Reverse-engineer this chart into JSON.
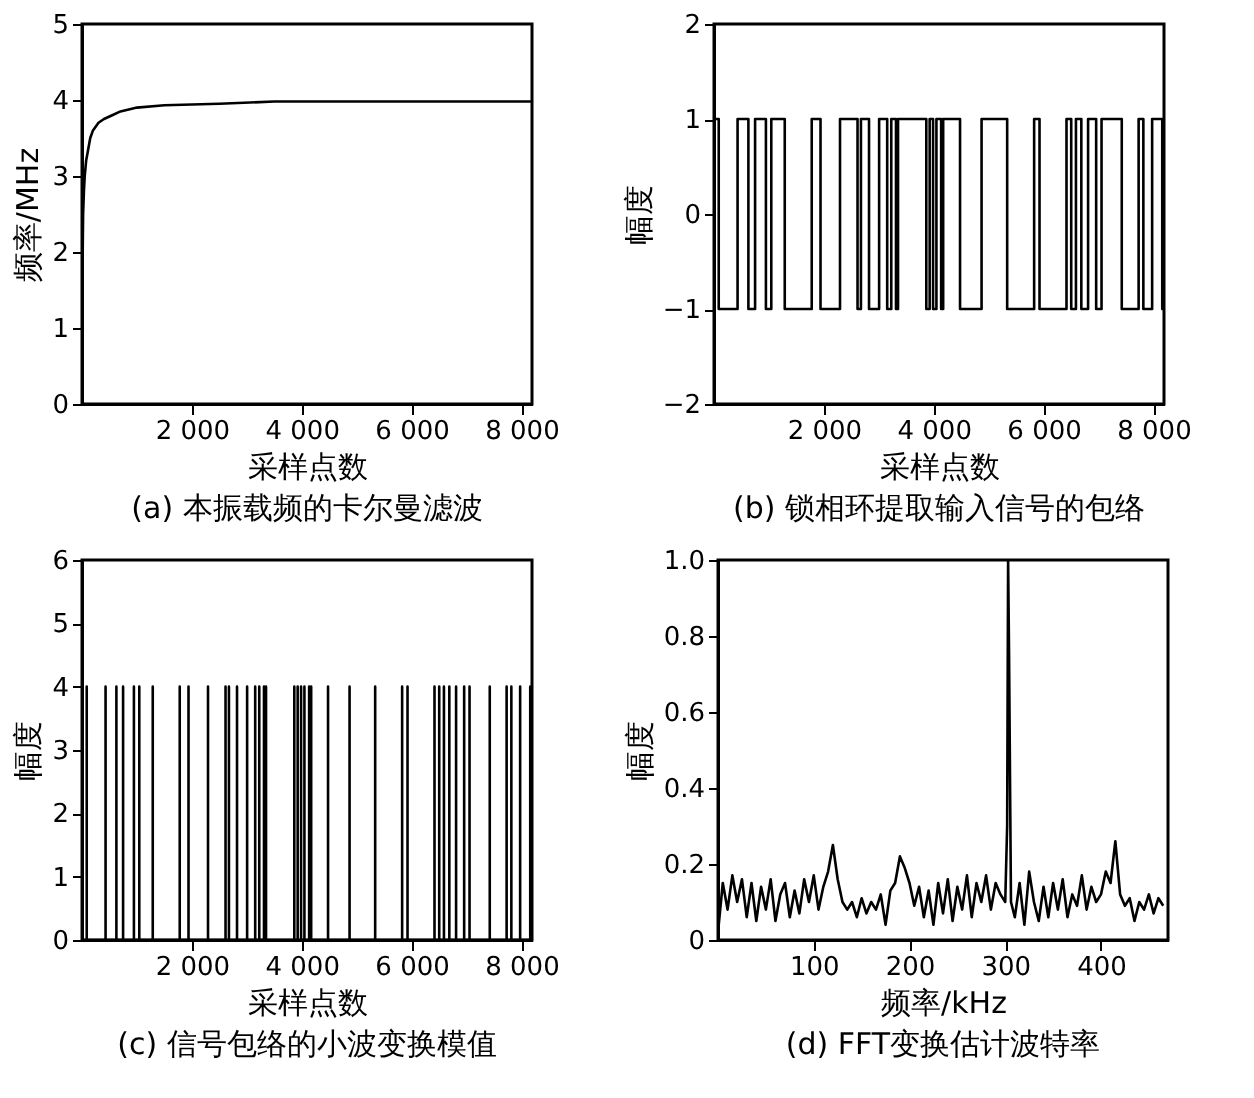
{
  "chart_data": [
    {
      "type": "line",
      "title": "(a) 本振载频的卡尔曼滤波",
      "xlabel": "采样点数",
      "ylabel": "频率/MHz",
      "xlim": [
        0,
        8192
      ],
      "ylim": [
        0,
        5
      ],
      "xticks": [
        {
          "value": 2000,
          "label": "2 000"
        },
        {
          "value": 4000,
          "label": "4 000"
        },
        {
          "value": 6000,
          "label": "6 000"
        },
        {
          "value": 8000,
          "label": "8 000"
        }
      ],
      "yticks": [
        0,
        1,
        2,
        3,
        4,
        5
      ],
      "grid": false,
      "series": [
        {
          "color": "#000000",
          "x": [
            0,
            10,
            20,
            35,
            50,
            75,
            100,
            150,
            200,
            300,
            400,
            550,
            700,
            1000,
            1500,
            2500,
            3500,
            8192
          ],
          "values": [
            0.9,
            1.8,
            2.5,
            2.8,
            3.0,
            3.2,
            3.3,
            3.5,
            3.6,
            3.7,
            3.75,
            3.8,
            3.85,
            3.9,
            3.93,
            3.95,
            3.98,
            3.98
          ]
        }
      ]
    },
    {
      "type": "step",
      "title": "(b) 锁相环提取输入信号的包络",
      "xlabel": "采样点数",
      "ylabel": "幅度",
      "xlim": [
        0,
        8192
      ],
      "ylim": [
        -2,
        2
      ],
      "xticks": [
        {
          "value": 2000,
          "label": "2 000"
        },
        {
          "value": 4000,
          "label": "4 000"
        },
        {
          "value": 6000,
          "label": "6 000"
        },
        {
          "value": 8000,
          "label": "8 000"
        }
      ],
      "yticks": [
        {
          "value": -2,
          "label": "−2"
        },
        {
          "value": -1,
          "label": "−1"
        },
        0,
        1,
        2
      ],
      "grid": false,
      "series": [
        {
          "color": "#000000",
          "x": [
            0,
            86,
            429,
            626,
            748,
            945,
            1043,
            1288,
            1779,
            1939,
            2294,
            2613,
            2675,
            2822,
            3006,
            3153,
            3227,
            3313,
            3350,
            3865,
            3926,
            3988,
            4049,
            4135,
            4172,
            4479,
            4871,
            5337,
            5828,
            5926,
            6417,
            6503,
            6589,
            6687,
            6810,
            6957,
            7055,
            7423,
            7730,
            7816,
            7976,
            8160,
            8192
          ],
          "values": [
            1,
            -1,
            1,
            -1,
            1,
            -1,
            1,
            -1,
            1,
            -1,
            1,
            -1,
            1,
            -1,
            1,
            -1,
            1,
            -1,
            1,
            -1,
            1,
            -1,
            1,
            -1,
            1,
            -1,
            1,
            -1,
            1,
            -1,
            1,
            -1,
            1,
            -1,
            1,
            -1,
            1,
            -1,
            1,
            -1,
            1,
            -1,
            -1
          ]
        }
      ]
    },
    {
      "type": "line",
      "title": "(c) 信号包络的小波变换模值",
      "xlabel": "采样点数",
      "ylabel": "幅度",
      "xlim": [
        0,
        8192
      ],
      "ylim": [
        0,
        6
      ],
      "xticks": [
        {
          "value": 2000,
          "label": "2 000"
        },
        {
          "value": 4000,
          "label": "4 000"
        },
        {
          "value": 6000,
          "label": "6 000"
        },
        {
          "value": 8000,
          "label": "8 000"
        }
      ],
      "yticks": [
        0,
        1,
        2,
        3,
        4,
        5,
        6
      ],
      "grid": false,
      "series": [
        {
          "color": "#000000",
          "x": [
            0,
            86,
            86,
            86,
            429,
            429,
            429,
            626,
            626,
            626,
            748,
            748,
            748,
            945,
            945,
            945,
            1043,
            1043,
            1043,
            1288,
            1288,
            1288,
            1779,
            1779,
            1779,
            1939,
            1939,
            1939,
            2294,
            2294,
            2294,
            2613,
            2613,
            2613,
            2675,
            2675,
            2675,
            2822,
            2822,
            2822,
            3006,
            3006,
            3006,
            3153,
            3153,
            3153,
            3227,
            3227,
            3227,
            3313,
            3313,
            3313,
            3350,
            3350,
            3350,
            3865,
            3865,
            3865,
            3926,
            3926,
            3926,
            3988,
            3988,
            3988,
            4049,
            4049,
            4049,
            4135,
            4135,
            4135,
            4172,
            4172,
            4172,
            4479,
            4479,
            4479,
            4871,
            4871,
            4871,
            5337,
            5337,
            5337,
            5828,
            5828,
            5828,
            5926,
            5926,
            5926,
            6417,
            6417,
            6417,
            6503,
            6503,
            6503,
            6589,
            6589,
            6589,
            6687,
            6687,
            6687,
            6810,
            6810,
            6810,
            6957,
            6957,
            6957,
            7055,
            7055,
            7055,
            7423,
            7423,
            7423,
            7730,
            7730,
            7730,
            7816,
            7816,
            7816,
            7976,
            7976,
            7976,
            8160,
            8160,
            8160,
            8192
          ],
          "values": [
            0,
            0,
            4,
            0,
            0,
            4,
            0,
            0,
            4,
            0,
            0,
            4,
            0,
            0,
            4,
            0,
            0,
            4,
            0,
            0,
            4,
            0,
            0,
            4,
            0,
            0,
            4,
            0,
            0,
            4,
            0,
            0,
            4,
            0,
            0,
            4,
            0,
            0,
            4,
            0,
            0,
            4,
            0,
            0,
            4,
            0,
            0,
            4,
            0,
            0,
            4,
            0,
            0,
            4,
            0,
            0,
            4,
            0,
            0,
            4,
            0,
            0,
            4,
            0,
            0,
            4,
            0,
            0,
            4,
            0,
            0,
            4,
            0,
            0,
            4,
            0,
            0,
            4,
            0,
            0,
            4,
            0,
            0,
            4,
            0,
            0,
            4,
            0,
            0,
            4,
            0,
            0,
            4,
            0,
            0,
            4,
            0,
            0,
            4,
            0,
            0,
            4,
            0,
            0,
            4,
            0,
            0,
            4,
            0,
            0,
            4,
            0,
            0,
            4,
            0,
            0,
            4,
            0,
            0,
            4,
            0,
            0,
            4,
            0,
            0
          ]
        }
      ]
    },
    {
      "type": "line",
      "title": "(d) FFT变换估计波特率",
      "xlabel": "频率/kHz",
      "ylabel": "幅度",
      "xlim": [
        0,
        470
      ],
      "ylim": [
        0,
        1
      ],
      "xticks": [
        100,
        200,
        300,
        400
      ],
      "yticks": [
        0,
        {
          "value": 0.2,
          "label": "0.2"
        },
        {
          "value": 0.4,
          "label": "0.4"
        },
        {
          "value": 0.6,
          "label": "0.6"
        },
        {
          "value": 0.8,
          "label": "0.8"
        },
        {
          "value": 1,
          "label": "1.0"
        }
      ],
      "grid": false,
      "series": [
        {
          "color": "#000000",
          "x": [
            0,
            5,
            10,
            15,
            20,
            25,
            30,
            35,
            40,
            45,
            50,
            55,
            60,
            65,
            70,
            75,
            80,
            85,
            90,
            95,
            100,
            105,
            110,
            115,
            120,
            125,
            130,
            135,
            140,
            145,
            150,
            155,
            160,
            165,
            170,
            175,
            180,
            185,
            190,
            195,
            200,
            205,
            210,
            215,
            220,
            225,
            230,
            235,
            240,
            245,
            250,
            255,
            260,
            265,
            270,
            275,
            280,
            285,
            290,
            295,
            300,
            302,
            303,
            304,
            306,
            310,
            315,
            320,
            325,
            330,
            335,
            340,
            345,
            350,
            355,
            360,
            365,
            370,
            375,
            380,
            385,
            390,
            395,
            400,
            405,
            410,
            415,
            420,
            425,
            430,
            435,
            440,
            445,
            450,
            455,
            460,
            465
          ],
          "values": [
            0.02,
            0.15,
            0.08,
            0.17,
            0.1,
            0.16,
            0.06,
            0.15,
            0.05,
            0.14,
            0.08,
            0.16,
            0.05,
            0.12,
            0.15,
            0.06,
            0.13,
            0.07,
            0.16,
            0.1,
            0.17,
            0.08,
            0.14,
            0.18,
            0.25,
            0.16,
            0.1,
            0.08,
            0.1,
            0.06,
            0.11,
            0.07,
            0.1,
            0.08,
            0.12,
            0.04,
            0.13,
            0.15,
            0.22,
            0.19,
            0.15,
            0.09,
            0.14,
            0.06,
            0.13,
            0.04,
            0.15,
            0.07,
            0.16,
            0.05,
            0.14,
            0.08,
            0.17,
            0.06,
            0.15,
            0.1,
            0.17,
            0.08,
            0.15,
            0.12,
            0.1,
            0.3,
            1.0,
            0.75,
            0.1,
            0.06,
            0.15,
            0.04,
            0.18,
            0.1,
            0.05,
            0.14,
            0.06,
            0.15,
            0.08,
            0.16,
            0.06,
            0.12,
            0.09,
            0.17,
            0.08,
            0.14,
            0.1,
            0.12,
            0.18,
            0.15,
            0.26,
            0.12,
            0.09,
            0.11,
            0.05,
            0.1,
            0.08,
            0.12,
            0.07,
            0.11,
            0.09
          ]
        }
      ]
    }
  ]
}
